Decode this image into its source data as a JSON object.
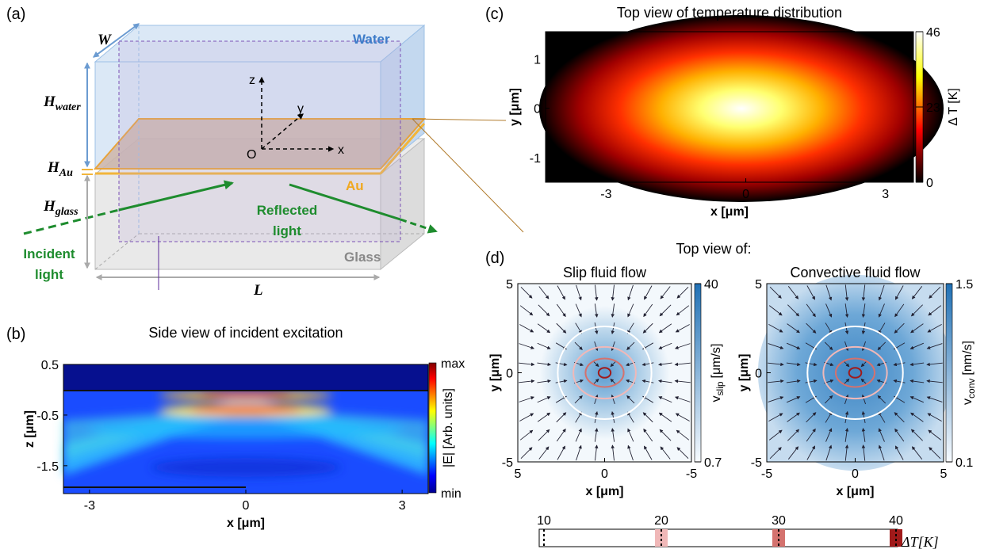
{
  "panel_a": {
    "label": "(a)",
    "W": "W",
    "H_water": {
      "main": "H",
      "sub": "water"
    },
    "H_Au": {
      "main": "H",
      "sub": "Au"
    },
    "H_glass": {
      "main": "H",
      "sub": "glass"
    },
    "L": "L",
    "water": "Water",
    "au": "Au",
    "glass": "Glass",
    "axes": {
      "z": "z",
      "y": "y",
      "x": "x",
      "origin": "O"
    },
    "incident": [
      "Incident",
      "light"
    ],
    "reflected": [
      "Reflected",
      "light"
    ]
  },
  "panel_b": {
    "label": "(b)",
    "title": "Side view of incident excitation",
    "xlabel": "x [μm]",
    "ylabel": "z [μm]",
    "xlim": [
      -3.5,
      3.5
    ],
    "xticks": [
      -3,
      0,
      3
    ],
    "ylim": [
      -2.05,
      0.5
    ],
    "yticks": [
      0.5,
      -0.5,
      -1.5
    ],
    "colorbar": {
      "label": "|E| [Arb. units]",
      "max": "max",
      "min": "min"
    }
  },
  "panel_c": {
    "label": "(c)",
    "title": "Top view of temperature distribution",
    "xlabel": "x [μm]",
    "ylabel": "y [μm]",
    "xlim": [
      -4.3,
      3.6
    ],
    "xticks": [
      -3,
      0,
      3
    ],
    "ylim": [
      -1.5,
      1.55
    ],
    "yticks": [
      -1,
      0,
      1
    ],
    "colorbar": {
      "label": "Δ T [K]",
      "lim": [
        0,
        46
      ],
      "ticks": [
        0,
        23,
        46
      ]
    }
  },
  "panel_d": {
    "label": "(d)",
    "title": "Top view of:",
    "plots": [
      {
        "title": "Slip fluid flow",
        "xlabel": "x [μm]",
        "ylabel": "y [μm]",
        "xlim": [
          5,
          -5
        ],
        "xticks": [
          5,
          0,
          -5
        ],
        "ylim": [
          -5,
          5
        ],
        "yticks": [
          -5,
          0,
          5
        ],
        "colorbar": {
          "label": {
            "main": "v",
            "sub": "slip",
            "unit": "[μm/s]"
          },
          "lim": [
            0.7,
            40
          ],
          "ticks": [
            0.7,
            40
          ]
        }
      },
      {
        "title": "Convective fluid flow",
        "xlabel": "x [μm]",
        "ylabel": "y [μm]",
        "xlim": [
          -5,
          5
        ],
        "xticks": [
          -5,
          0,
          5
        ],
        "ylim": [
          -5,
          5
        ],
        "yticks": [
          -5,
          0,
          5
        ],
        "colorbar": {
          "label": {
            "main": "v",
            "sub": "conv",
            "unit": "[nm/s]"
          },
          "lim": [
            0.1,
            1.5
          ],
          "ticks": [
            0.1,
            1.5
          ]
        }
      }
    ],
    "contours": {
      "ticks": [
        10,
        20,
        30,
        40
      ],
      "colors": [
        "#ffffff",
        "#f0b8b8",
        "#d4726e",
        "#a01a1a"
      ],
      "label": "ΔT[K]"
    }
  }
}
